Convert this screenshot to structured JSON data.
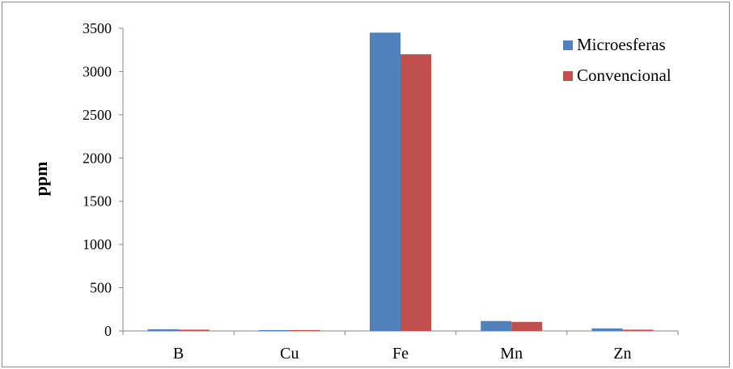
{
  "chart_data": {
    "type": "bar",
    "title": "",
    "xlabel": "",
    "ylabel": "ppm",
    "ylim": [
      0,
      3500
    ],
    "yticks": [
      "0",
      "500",
      "1000",
      "1500",
      "2000",
      "2500",
      "3000",
      "3500"
    ],
    "categories": [
      "B",
      "Cu",
      "Fe",
      "Mn",
      "Zn"
    ],
    "series": [
      {
        "name": "Microesferas",
        "values": [
          20,
          10,
          3450,
          115,
          30
        ]
      },
      {
        "name": "Convencional",
        "values": [
          15,
          10,
          3200,
          105,
          15
        ]
      }
    ],
    "colors": [
      "#4f81bd",
      "#c0504d"
    ],
    "grid": false,
    "legend_position": "top-right"
  }
}
